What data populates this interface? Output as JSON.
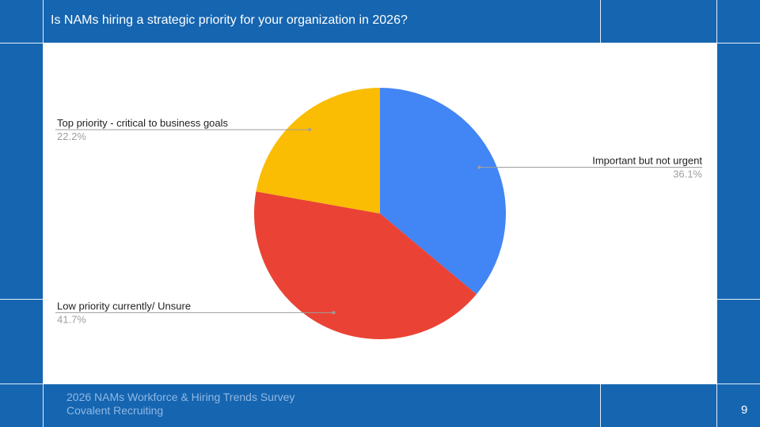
{
  "slide": {
    "title": "Is NAMs hiring a strategic priority for your organization in 2026?",
    "footer_line1": "2026 NAMs Workforce & Hiring Trends Survey",
    "footer_line2": "Covalent Recruiting",
    "page_number": "9"
  },
  "colors": {
    "background": "#1565b0",
    "panel": "#ffffff",
    "blue": "#4285f4",
    "red": "#ea4335",
    "yellow": "#fbbc04"
  },
  "chart_data": {
    "type": "pie",
    "title": "",
    "start_angle_deg": 0,
    "direction": "clockwise",
    "slices": [
      {
        "label": "Important but not urgent",
        "value": 36.1,
        "value_label": "36.1%",
        "color": "#4285f4",
        "label_side": "right"
      },
      {
        "label": "Low priority currently/ Unsure",
        "value": 41.7,
        "value_label": "41.7%",
        "color": "#ea4335",
        "label_side": "left"
      },
      {
        "label": "Top priority - critical to business goals",
        "value": 22.2,
        "value_label": "22.2%",
        "color": "#fbbc04",
        "label_side": "left"
      }
    ]
  }
}
